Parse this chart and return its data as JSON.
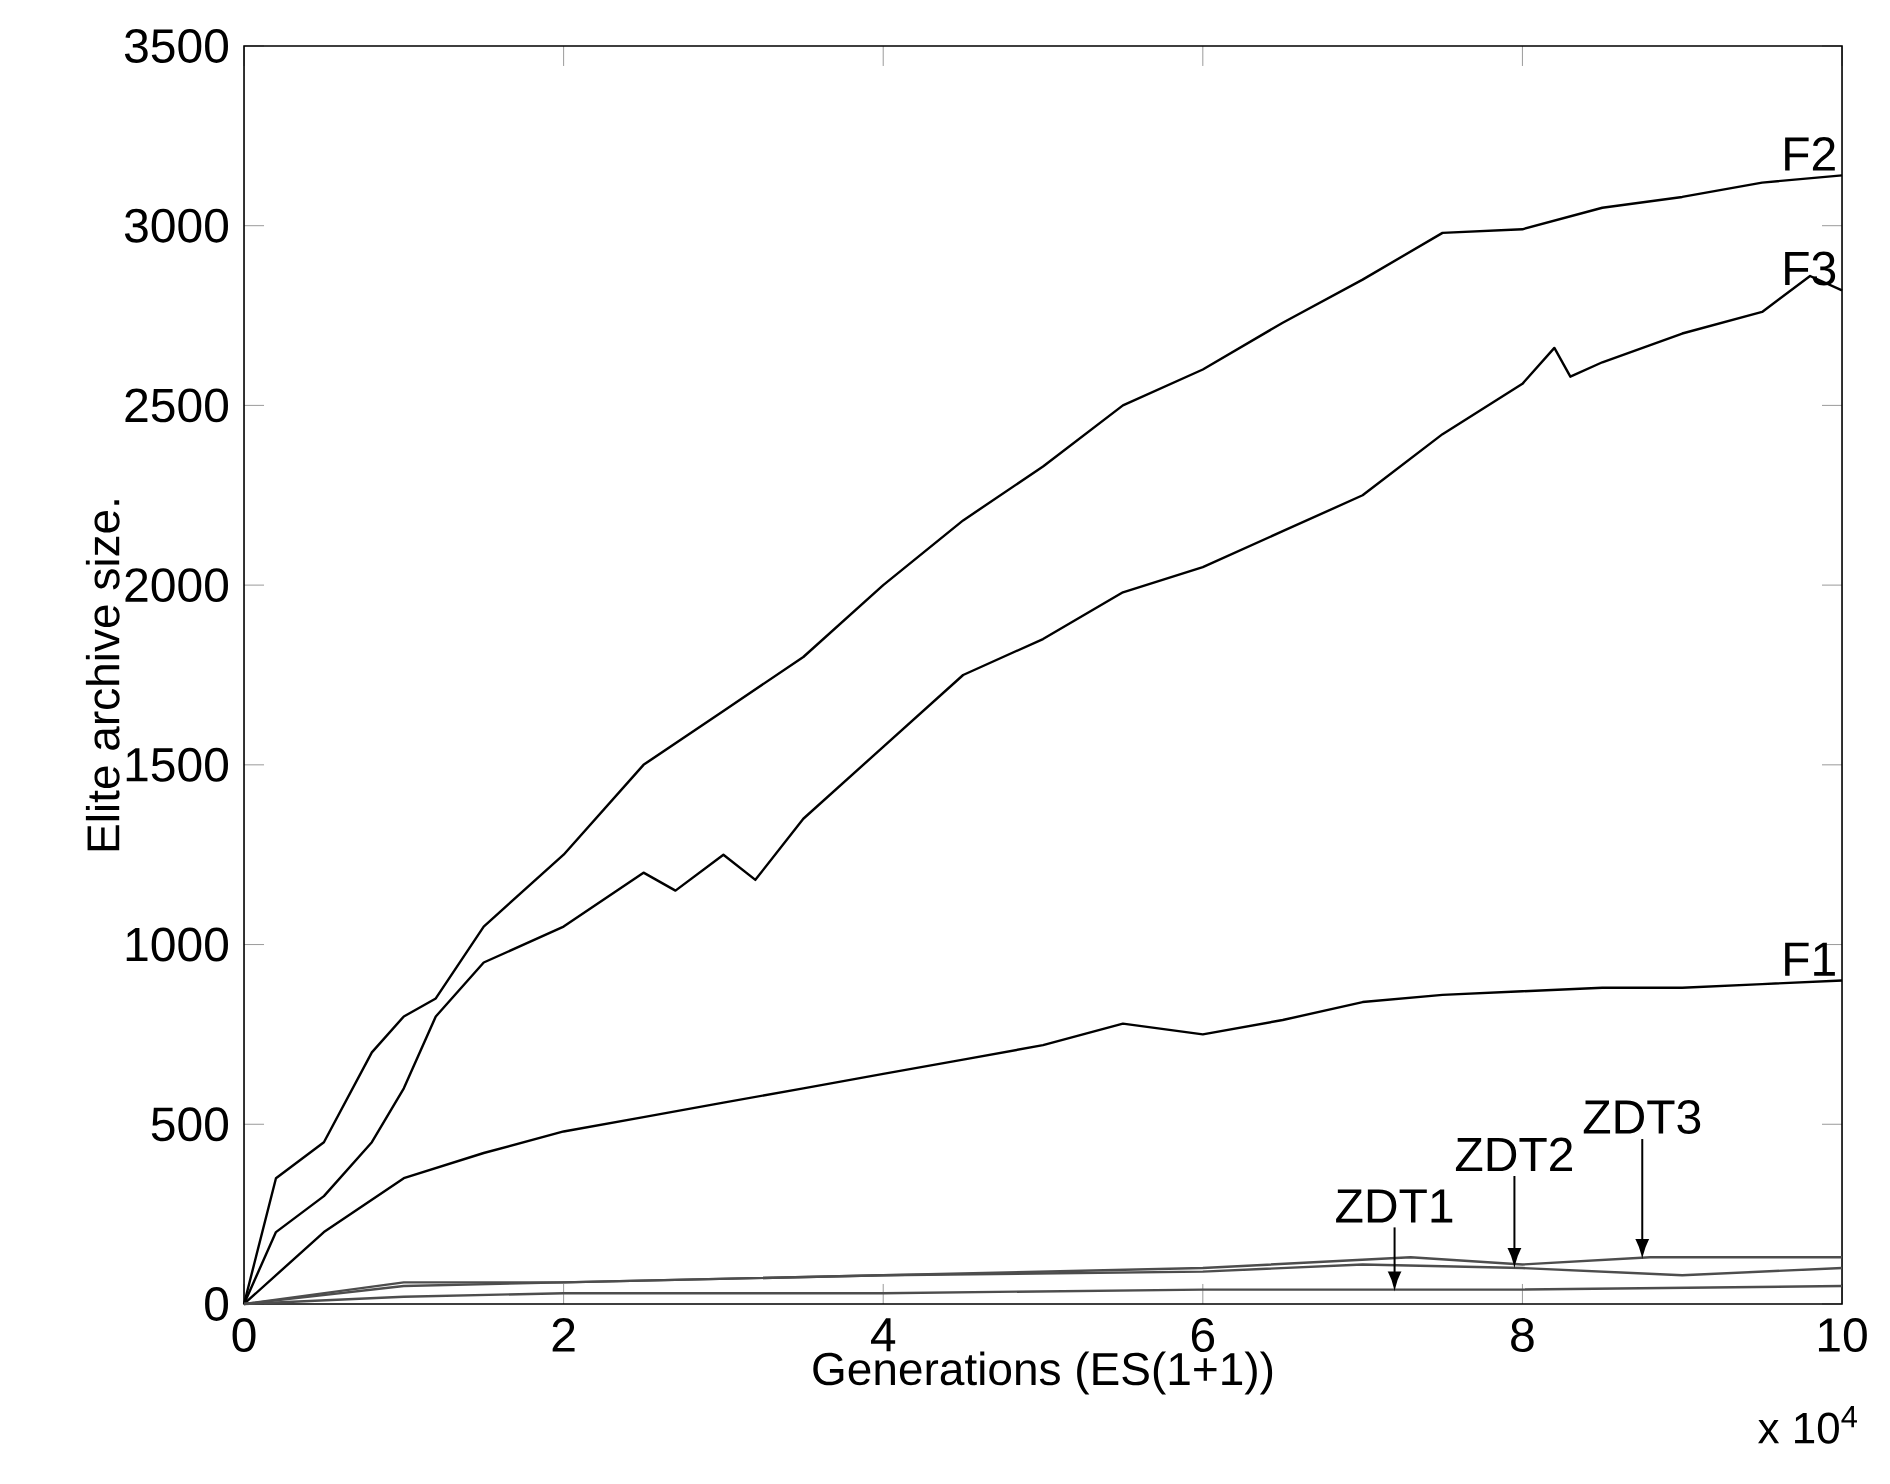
{
  "chart_data": {
    "type": "line",
    "xlabel": "Generations (ES(1+1))",
    "ylabel": "Elite archive size.",
    "xlim": [
      0,
      10
    ],
    "ylim": [
      0,
      3500
    ],
    "xticks": [
      0,
      2,
      4,
      6,
      8,
      10
    ],
    "yticks": [
      0,
      500,
      1000,
      1500,
      2000,
      2500,
      3000,
      3500
    ],
    "series": [
      {
        "name": "F2",
        "color": "#000000",
        "x": [
          0,
          0.2,
          0.5,
          0.8,
          1,
          1.2,
          1.5,
          2,
          2.5,
          3,
          3.5,
          4,
          4.5,
          5,
          5.5,
          6,
          6.5,
          7,
          7.5,
          8,
          8.5,
          9,
          9.5,
          10
        ],
        "values": [
          0,
          350,
          450,
          700,
          800,
          850,
          1050,
          1250,
          1500,
          1650,
          1800,
          2000,
          2180,
          2330,
          2500,
          2600,
          2730,
          2850,
          2980,
          2990,
          3050,
          3080,
          3120,
          3140
        ]
      },
      {
        "name": "F3",
        "color": "#000000",
        "x": [
          0,
          0.2,
          0.5,
          0.8,
          1,
          1.2,
          1.5,
          2,
          2.5,
          2.7,
          3,
          3.2,
          3.5,
          4,
          4.5,
          5,
          5.5,
          6,
          6.5,
          7,
          7.5,
          8,
          8.2,
          8.3,
          8.5,
          9,
          9.5,
          9.8,
          10
        ],
        "values": [
          0,
          200,
          300,
          450,
          600,
          800,
          950,
          1050,
          1200,
          1150,
          1250,
          1180,
          1350,
          1550,
          1750,
          1850,
          1980,
          2050,
          2150,
          2250,
          2420,
          2560,
          2660,
          2580,
          2620,
          2700,
          2760,
          2860,
          2820
        ]
      },
      {
        "name": "F1",
        "color": "#000000",
        "x": [
          0,
          0.5,
          1,
          1.5,
          2,
          2.5,
          3,
          3.5,
          4,
          4.5,
          5,
          5.5,
          6,
          6.5,
          7,
          7.5,
          8,
          8.5,
          9,
          9.5,
          10
        ],
        "values": [
          0,
          200,
          350,
          420,
          480,
          520,
          560,
          600,
          640,
          680,
          720,
          780,
          750,
          790,
          840,
          860,
          870,
          880,
          880,
          890,
          900
        ]
      },
      {
        "color": "#4d4d4d",
        "x": [
          0,
          1,
          2,
          4,
          6,
          8,
          10
        ],
        "values": [
          0,
          20,
          30,
          30,
          40,
          40,
          50
        ]
      },
      {
        "color": "#4d4d4d",
        "x": [
          0,
          1,
          2,
          4,
          6,
          7,
          8,
          9,
          10
        ],
        "values": [
          0,
          60,
          60,
          80,
          90,
          110,
          100,
          80,
          100
        ]
      },
      {
        "color": "#4d4d4d",
        "x": [
          0,
          1,
          2,
          4,
          6,
          7.3,
          8,
          8.8,
          10
        ],
        "values": [
          0,
          50,
          60,
          80,
          100,
          130,
          110,
          130,
          130
        ]
      }
    ],
    "annotations": [
      {
        "text": "ZDT1",
        "x": 7.2,
        "y": 35
      },
      {
        "text": "ZDT2",
        "x": 7.95,
        "y": 100
      },
      {
        "text": "ZDT3",
        "x": 8.75,
        "y": 125
      },
      "x 10$^{4}$"
    ]
  }
}
